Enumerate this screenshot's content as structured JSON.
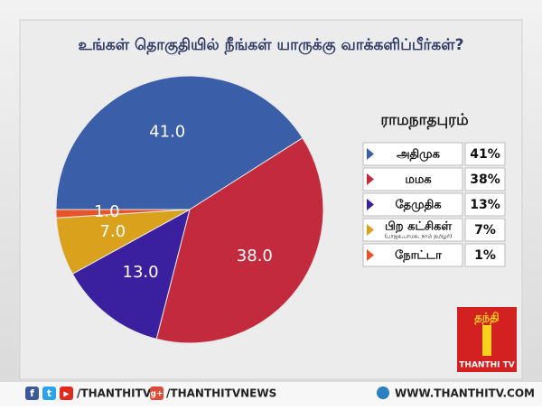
{
  "chart_data": {
    "type": "pie",
    "title": "உங்கள் தொகுதியில் நீங்கள் யாருக்கு வாக்களிப்பீர்கள்?",
    "legend_title": "ராமநாதபுரம்",
    "categories": [
      "அதிமுக",
      "மமக",
      "தேமுதிக",
      "பிற கட்சிகள்",
      "நோட்டா"
    ],
    "category_notes": [
      null,
      null,
      null,
      "(பாஜக,பாமக, நாம் தமிழர்)",
      null
    ],
    "values": [
      41,
      38,
      13,
      7,
      1
    ],
    "value_labels": [
      "41.0",
      "38.0",
      "13.0",
      "7.0",
      "1.0"
    ],
    "legend_value_labels": [
      "41%",
      "38%",
      "13%",
      "7%",
      "1%"
    ],
    "colors": [
      "#3a5ea8",
      "#c42a3d",
      "#3a1f9e",
      "#d9a11c",
      "#e8532a"
    ]
  },
  "footer": {
    "facebook": "f",
    "twitter": "t",
    "youtube": "▶",
    "handle": "/THANTHITV",
    "gplus": "g+",
    "news_handle": "/THANTHITVNEWS",
    "website": "WWW.THANTHITV.COM"
  },
  "logo": {
    "top": "தந்தி",
    "bottom": "THANTHI TV"
  }
}
